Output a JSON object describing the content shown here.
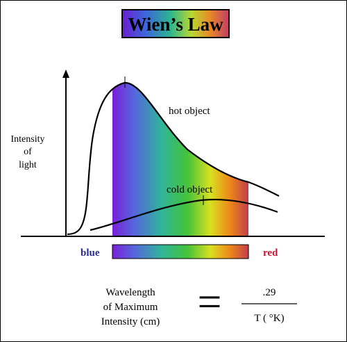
{
  "title": "Wien’s Law",
  "y_axis_label": [
    "Intensity",
    "of",
    "light"
  ],
  "curves": {
    "hot": "hot object",
    "cold": "cold object"
  },
  "spectrum": {
    "left_label": "blue",
    "right_label": "red",
    "left_color": "#2a2a9a",
    "right_color": "#cc1133",
    "stops": [
      "#7a1fd8",
      "#5566dd",
      "#2fb59a",
      "#44c23a",
      "#d8e020",
      "#ee8a18",
      "#c23c4a"
    ]
  },
  "equation": {
    "lhs": [
      "Wavelength",
      "of Maximum",
      "Intensity (cm)"
    ],
    "equals": "=",
    "numerator": ".29",
    "denominator": "T ( °K)"
  },
  "colors": {
    "title_border": "#000000",
    "frame": "#000000"
  }
}
